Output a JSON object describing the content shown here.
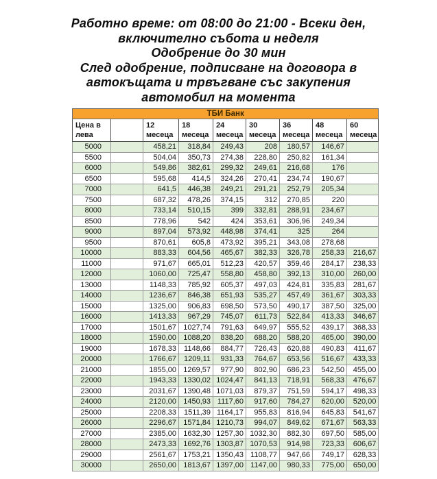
{
  "header": {
    "lines": [
      "Работно време: от 08:00 до 21:00 - Всеки ден,",
      "включително събота и неделя",
      "Одобрение до 30 мин",
      "След одобрение, подписване на договора в",
      "автокъщата и трвъгване със закупения",
      "автомобил на момента"
    ]
  },
  "table": {
    "bank_title": "ТБИ Банк",
    "price_header": "Цена в\nлева",
    "month_headers": [
      {
        "num": "12",
        "unit": "месеца"
      },
      {
        "num": "18",
        "unit": "месеца"
      },
      {
        "num": "24",
        "unit": "месеца"
      },
      {
        "num": "30",
        "unit": "месеца"
      },
      {
        "num": "36",
        "unit": "месеца"
      },
      {
        "num": "48",
        "unit": "месеца"
      },
      {
        "num": "60",
        "unit": "месеца"
      }
    ],
    "rows": [
      {
        "price": "5000",
        "payments": [
          "458,21",
          "318,84",
          "249,43",
          "208",
          "180,57",
          "146,67",
          ""
        ]
      },
      {
        "price": "5500",
        "payments": [
          "504,04",
          "350,73",
          "274,38",
          "228,80",
          "250,82",
          "161,34",
          ""
        ]
      },
      {
        "price": "6000",
        "payments": [
          "549,86",
          "382,61",
          "299,32",
          "249,61",
          "216,68",
          "176",
          ""
        ]
      },
      {
        "price": "6500",
        "payments": [
          "595,68",
          "414,5",
          "324,26",
          "270,41",
          "234,74",
          "190,67",
          ""
        ]
      },
      {
        "price": "7000",
        "payments": [
          "641,5",
          "446,38",
          "249,21",
          "291,21",
          "252,79",
          "205,34",
          ""
        ]
      },
      {
        "price": "7500",
        "payments": [
          "687,32",
          "478,26",
          "374,15",
          "312",
          "270,85",
          "220",
          ""
        ]
      },
      {
        "price": "8000",
        "payments": [
          "733,14",
          "510,15",
          "399",
          "332,81",
          "288,91",
          "234,67",
          ""
        ]
      },
      {
        "price": "8500",
        "payments": [
          "778,96",
          "542",
          "424",
          "353,61",
          "306,96",
          "249,34",
          ""
        ]
      },
      {
        "price": "9000",
        "payments": [
          "897,04",
          "573,92",
          "448,98",
          "374,41",
          "325",
          "264",
          ""
        ]
      },
      {
        "price": "9500",
        "payments": [
          "870,61",
          "605,8",
          "473,92",
          "395,21",
          "343,08",
          "278,68",
          ""
        ]
      },
      {
        "price": "10000",
        "payments": [
          "883,33",
          "604,56",
          "465,67",
          "382,33",
          "326,78",
          "258,33",
          "216,67"
        ]
      },
      {
        "price": "11000",
        "payments": [
          "971,67",
          "665,01",
          "512,23",
          "420,57",
          "359,46",
          "284,17",
          "238,33"
        ]
      },
      {
        "price": "12000",
        "payments": [
          "1060,00",
          "725,47",
          "558,80",
          "458,80",
          "392,13",
          "310,00",
          "260,00"
        ]
      },
      {
        "price": "13000",
        "payments": [
          "1148,33",
          "785,92",
          "605,37",
          "497,03",
          "424,81",
          "335,83",
          "281,67"
        ]
      },
      {
        "price": "14000",
        "payments": [
          "1236,67",
          "846,38",
          "651,93",
          "535,27",
          "457,49",
          "361,67",
          "303,33"
        ]
      },
      {
        "price": "15000",
        "payments": [
          "1325,00",
          "906,83",
          "698,50",
          "573,50",
          "490,17",
          "387,50",
          "325,00"
        ]
      },
      {
        "price": "16000",
        "payments": [
          "1413,33",
          "967,29",
          "745,07",
          "611,73",
          "522,84",
          "413,33",
          "346,67"
        ]
      },
      {
        "price": "17000",
        "payments": [
          "1501,67",
          "1027,74",
          "791,63",
          "649,97",
          "555,52",
          "439,17",
          "368,33"
        ]
      },
      {
        "price": "18000",
        "payments": [
          "1590,00",
          "1088,20",
          "838,20",
          "688,20",
          "588,20",
          "465,00",
          "390,00"
        ]
      },
      {
        "price": "19000",
        "payments": [
          "1678,33",
          "1148,66",
          "884,77",
          "726,43",
          "620,88",
          "490,83",
          "411,67"
        ]
      },
      {
        "price": "20000",
        "payments": [
          "1766,67",
          "1209,11",
          "931,33",
          "764,67",
          "653,56",
          "516,67",
          "433,33"
        ]
      },
      {
        "price": "21000",
        "payments": [
          "1855,00",
          "1269,57",
          "977,90",
          "802,90",
          "686,23",
          "542,50",
          "455,00"
        ]
      },
      {
        "price": "22000",
        "payments": [
          "1943,33",
          "1330,02",
          "1024,47",
          "841,13",
          "718,91",
          "568,33",
          "476,67"
        ]
      },
      {
        "price": "23000",
        "payments": [
          "2031,67",
          "1390,48",
          "1071,03",
          "879,37",
          "751,59",
          "594,17",
          "498,33"
        ]
      },
      {
        "price": "24000",
        "payments": [
          "2120,00",
          "1450,93",
          "1117,60",
          "917,60",
          "784,27",
          "620,00",
          "520,00"
        ]
      },
      {
        "price": "25000",
        "payments": [
          "2208,33",
          "1511,39",
          "1164,17",
          "955,83",
          "816,94",
          "645,83",
          "541,67"
        ]
      },
      {
        "price": "26000",
        "payments": [
          "2296,67",
          "1571,84",
          "1210,73",
          "994,07",
          "849,62",
          "671,67",
          "563,33"
        ]
      },
      {
        "price": "27000",
        "payments": [
          "2385,00",
          "1632,30",
          "1257,30",
          "1032,30",
          "882,30",
          "697,50",
          "585,00"
        ]
      },
      {
        "price": "28000",
        "payments": [
          "2473,33",
          "1692,76",
          "1303,87",
          "1070,53",
          "914,98",
          "723,33",
          "606,67"
        ]
      },
      {
        "price": "29000",
        "payments": [
          "2561,67",
          "1753,21",
          "1350,43",
          "1108,77",
          "947,66",
          "749,17",
          "628,33"
        ]
      },
      {
        "price": "30000",
        "payments": [
          "2650,00",
          "1813,67",
          "1397,00",
          "1147,00",
          "980,33",
          "775,00",
          "650,00"
        ]
      }
    ],
    "colors": {
      "banner_bg": "#f7a22e",
      "banner_text": "#3e2b00",
      "stripe_green": "#e2efda",
      "grid_border": "#979797"
    }
  }
}
